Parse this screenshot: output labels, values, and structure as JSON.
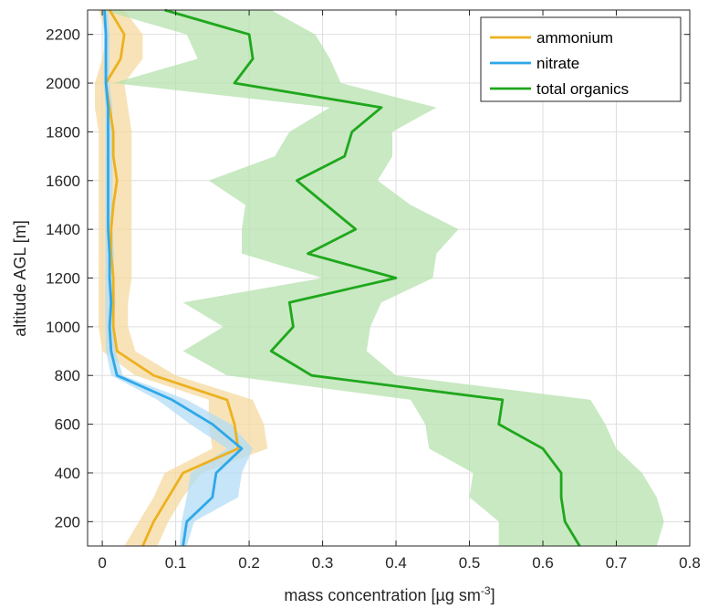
{
  "chart_data": {
    "type": "line",
    "xlabel": "mass concentration [µg sm",
    "xlabel_sup": "-3",
    "xlabel_end": "]",
    "ylabel": "altitude AGL [m]",
    "xlim": [
      -0.02,
      0.8
    ],
    "ylim": [
      100,
      2300
    ],
    "xticks": [
      0,
      0.1,
      0.2,
      0.3,
      0.4,
      0.5,
      0.6,
      0.7,
      0.8
    ],
    "xtick_labels": [
      "0",
      "0.1",
      "0.2",
      "0.3",
      "0.4",
      "0.5",
      "0.6",
      "0.7",
      "0.8"
    ],
    "yticks": [
      200,
      400,
      600,
      800,
      1000,
      1200,
      1400,
      1600,
      1800,
      2000,
      2200
    ],
    "ytick_labels": [
      "200",
      "400",
      "600",
      "800",
      "1000",
      "1200",
      "1400",
      "1600",
      "1800",
      "2000",
      "2200"
    ],
    "grid": true,
    "legend_position": "top-right",
    "series": [
      {
        "name": "ammonium",
        "color": "#EDB120",
        "band_color": "#F6D9A0",
        "points": [
          [
            0.055,
            100
          ],
          [
            0.07,
            200
          ],
          [
            0.09,
            300
          ],
          [
            0.11,
            400
          ],
          [
            0.185,
            500
          ],
          [
            0.18,
            600
          ],
          [
            0.17,
            700
          ],
          [
            0.07,
            800
          ],
          [
            0.02,
            900
          ],
          [
            0.015,
            1000
          ],
          [
            0.015,
            1100
          ],
          [
            0.015,
            1200
          ],
          [
            0.012,
            1300
          ],
          [
            0.012,
            1400
          ],
          [
            0.015,
            1500
          ],
          [
            0.02,
            1600
          ],
          [
            0.015,
            1700
          ],
          [
            0.015,
            1800
          ],
          [
            0.01,
            1900
          ],
          [
            0.005,
            2000
          ],
          [
            0.025,
            2100
          ],
          [
            0.03,
            2200
          ],
          [
            0.01,
            2300
          ]
        ],
        "lower": [
          0.03,
          0.05,
          0.07,
          0.085,
          0.15,
          0.145,
          0.145,
          0.045,
          0.0,
          -0.005,
          -0.005,
          -0.005,
          -0.005,
          -0.005,
          -0.005,
          -0.005,
          -0.005,
          -0.005,
          -0.01,
          -0.01,
          0.0,
          0.005,
          -0.005
        ],
        "upper": [
          0.075,
          0.09,
          0.11,
          0.135,
          0.225,
          0.22,
          0.205,
          0.1,
          0.045,
          0.035,
          0.035,
          0.04,
          0.04,
          0.04,
          0.04,
          0.04,
          0.04,
          0.04,
          0.035,
          0.03,
          0.055,
          0.055,
          0.03
        ]
      },
      {
        "name": "nitrate",
        "color": "#2EA8E8",
        "band_color": "#B3DCF6",
        "points": [
          [
            0.11,
            100
          ],
          [
            0.115,
            200
          ],
          [
            0.15,
            300
          ],
          [
            0.155,
            400
          ],
          [
            0.19,
            500
          ],
          [
            0.15,
            600
          ],
          [
            0.095,
            700
          ],
          [
            0.02,
            800
          ],
          [
            0.012,
            900
          ],
          [
            0.01,
            1000
          ],
          [
            0.012,
            1100
          ],
          [
            0.01,
            1200
          ],
          [
            0.01,
            1300
          ],
          [
            0.008,
            1400
          ],
          [
            0.008,
            1500
          ],
          [
            0.008,
            1600
          ],
          [
            0.008,
            1700
          ],
          [
            0.008,
            1800
          ],
          [
            0.008,
            1900
          ],
          [
            0.005,
            2000
          ],
          [
            0.005,
            2100
          ],
          [
            0.005,
            2200
          ],
          [
            0.003,
            2300
          ]
        ],
        "lower": [
          0.105,
          0.108,
          0.115,
          0.12,
          0.17,
          0.12,
          0.075,
          0.012,
          0.005,
          0.004,
          0.004,
          0.004,
          0.004,
          0.004,
          0.004,
          0.004,
          0.004,
          0.004,
          0.004,
          0.002,
          0.002,
          0.002,
          0.0
        ],
        "upper": [
          0.115,
          0.125,
          0.185,
          0.19,
          0.205,
          0.175,
          0.115,
          0.028,
          0.018,
          0.016,
          0.018,
          0.016,
          0.016,
          0.014,
          0.014,
          0.014,
          0.014,
          0.014,
          0.014,
          0.01,
          0.01,
          0.01,
          0.008
        ]
      },
      {
        "name": "total organics",
        "color": "#1FA71C",
        "band_color": "#B5E1AE",
        "points": [
          [
            0.65,
            100
          ],
          [
            0.63,
            200
          ],
          [
            0.625,
            300
          ],
          [
            0.625,
            400
          ],
          [
            0.6,
            500
          ],
          [
            0.54,
            600
          ],
          [
            0.545,
            700
          ],
          [
            0.285,
            800
          ],
          [
            0.23,
            900
          ],
          [
            0.26,
            1000
          ],
          [
            0.255,
            1100
          ],
          [
            0.4,
            1200
          ],
          [
            0.28,
            1300
          ],
          [
            0.345,
            1400
          ],
          [
            0.305,
            1500
          ],
          [
            0.265,
            1600
          ],
          [
            0.33,
            1700
          ],
          [
            0.34,
            1800
          ],
          [
            0.38,
            1900
          ],
          [
            0.18,
            2000
          ],
          [
            0.205,
            2100
          ],
          [
            0.2,
            2200
          ],
          [
            0.085,
            2300
          ]
        ],
        "lower": [
          0.54,
          0.54,
          0.5,
          0.505,
          0.445,
          0.44,
          0.42,
          0.17,
          0.11,
          0.165,
          0.11,
          0.3,
          0.19,
          0.19,
          0.195,
          0.145,
          0.235,
          0.255,
          0.31,
          0.015,
          0.13,
          0.115,
          0.0
        ],
        "upper": [
          0.755,
          0.765,
          0.755,
          0.735,
          0.7,
          0.685,
          0.665,
          0.4,
          0.36,
          0.365,
          0.38,
          0.45,
          0.455,
          0.485,
          0.42,
          0.375,
          0.395,
          0.395,
          0.455,
          0.325,
          0.31,
          0.29,
          0.23
        ]
      }
    ]
  }
}
